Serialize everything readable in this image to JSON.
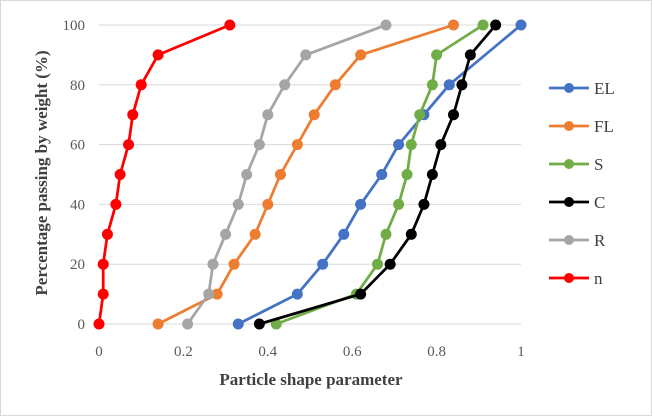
{
  "chart_data": {
    "type": "scatter",
    "title": "",
    "xlabel": "Particle shape parameter",
    "ylabel": "Percentage passing by weight (%)",
    "xlim": [
      0,
      1
    ],
    "ylim": [
      0,
      100
    ],
    "xticks": [
      0,
      0.2,
      0.4,
      0.6,
      0.8,
      1
    ],
    "xtick_labels": [
      "0",
      "0.2",
      "0.4",
      "0.6",
      "0.8",
      "1"
    ],
    "yticks": [
      0,
      20,
      40,
      60,
      80,
      100
    ],
    "ytick_labels": [
      "0",
      "20",
      "40",
      "60",
      "80",
      "100"
    ],
    "grid": "horizontal major gridlines",
    "legend_position": "right",
    "series": [
      {
        "name": "EL",
        "color": "#4472C4",
        "x": [
          0.33,
          0.47,
          0.53,
          0.58,
          0.62,
          0.67,
          0.71,
          0.77,
          0.83,
          1.0
        ],
        "y": [
          0,
          10,
          20,
          30,
          40,
          50,
          60,
          70,
          80,
          100
        ]
      },
      {
        "name": "FL",
        "color": "#ED7D31",
        "x": [
          0.14,
          0.28,
          0.32,
          0.37,
          0.4,
          0.43,
          0.47,
          0.51,
          0.56,
          0.62,
          0.84
        ],
        "y": [
          0,
          10,
          20,
          30,
          40,
          50,
          60,
          70,
          80,
          90,
          100
        ]
      },
      {
        "name": "S",
        "color": "#70AD47",
        "x": [
          0.42,
          0.61,
          0.66,
          0.68,
          0.71,
          0.73,
          0.74,
          0.76,
          0.79,
          0.8,
          0.91
        ],
        "y": [
          0,
          10,
          20,
          30,
          40,
          50,
          60,
          70,
          80,
          90,
          100
        ]
      },
      {
        "name": "C",
        "color": "#000000",
        "x": [
          0.38,
          0.62,
          0.69,
          0.74,
          0.77,
          0.79,
          0.81,
          0.84,
          0.86,
          0.88,
          0.94
        ],
        "y": [
          0,
          10,
          20,
          30,
          40,
          50,
          60,
          70,
          80,
          90,
          100
        ]
      },
      {
        "name": "R",
        "color": "#A5A5A5",
        "x": [
          0.21,
          0.26,
          0.27,
          0.3,
          0.33,
          0.35,
          0.38,
          0.4,
          0.44,
          0.49,
          0.68
        ],
        "y": [
          0,
          10,
          20,
          30,
          40,
          50,
          60,
          70,
          80,
          90,
          100
        ]
      },
      {
        "name": "n",
        "color": "#FF0000",
        "x": [
          0.0,
          0.01,
          0.01,
          0.02,
          0.04,
          0.05,
          0.07,
          0.08,
          0.1,
          0.14,
          0.31
        ],
        "y": [
          0,
          10,
          20,
          30,
          40,
          50,
          60,
          70,
          80,
          90,
          100
        ]
      }
    ]
  }
}
